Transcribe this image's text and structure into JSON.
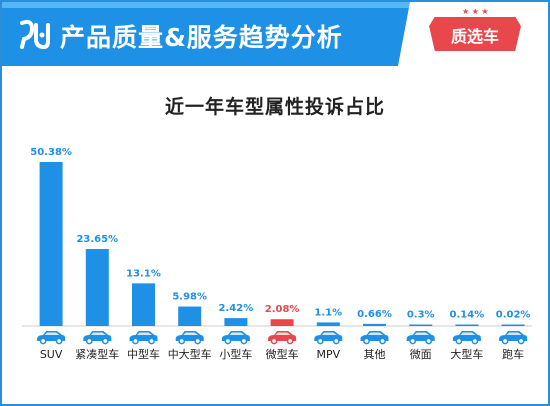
{
  "header": {
    "title": "产品质量&服务趋势分析",
    "badge": "质选车",
    "colors": {
      "header_bg": "#1e90e6",
      "badge_bg": "#e8474b",
      "badge_panel": "#ffffff"
    }
  },
  "chart_data": {
    "type": "bar",
    "title": "近一年车型属性投诉占比",
    "xlabel": "",
    "ylabel": "",
    "categories": [
      "SUV",
      "紧凑型车",
      "中型车",
      "中大型车",
      "小型车",
      "微型车",
      "MPV",
      "其他",
      "微面",
      "大型车",
      "跑车"
    ],
    "values": [
      50.38,
      23.65,
      13.1,
      5.98,
      2.42,
      2.08,
      1.1,
      0.66,
      0.3,
      0.14,
      0.02
    ],
    "value_labels": [
      "50.38%",
      "23.65%",
      "13.1%",
      "5.98%",
      "2.42%",
      "2.08%",
      "1.1%",
      "0.66%",
      "0.3%",
      "0.14%",
      "0.02%"
    ],
    "ylim": [
      0,
      50.38
    ],
    "grid": false,
    "legend": "none",
    "colors": {
      "bar": "#1e90e6",
      "highlight": "#e8474b",
      "highlight_index": 5
    },
    "category_icon": "car-icon"
  }
}
